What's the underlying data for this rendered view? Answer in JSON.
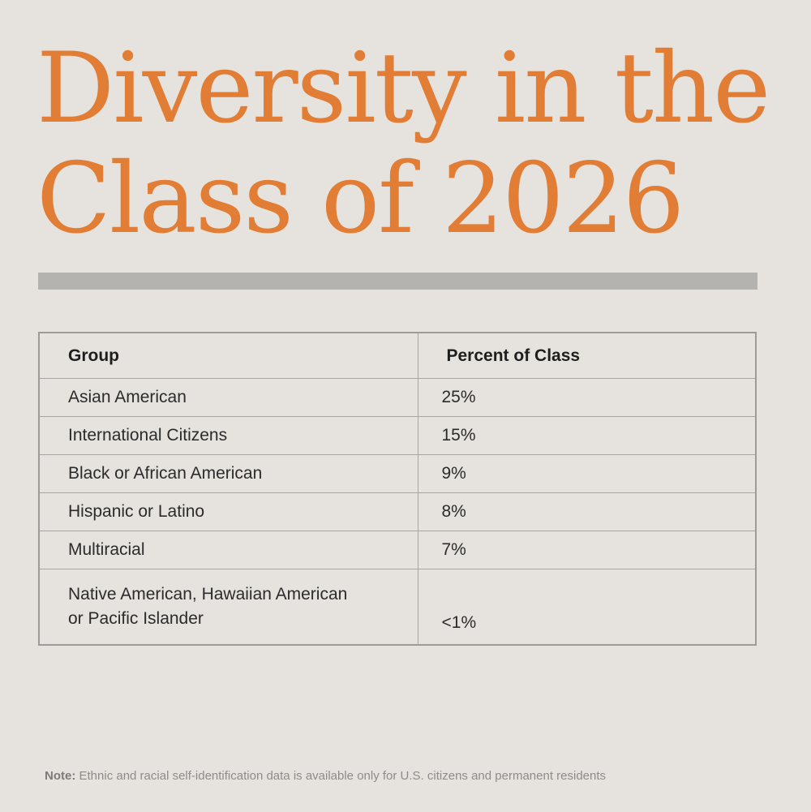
{
  "title_line1": "Diversity in the",
  "title_line2": "Class of 2026",
  "colors": {
    "title": "#e27d35",
    "rule": "#b5b3b0",
    "background": "#e6e3df",
    "table_border": "#a8a6a3"
  },
  "chart_data": {
    "type": "table",
    "title": "Diversity in the Class of 2026",
    "columns": [
      "Group",
      "Percent of Class"
    ],
    "rows": [
      {
        "group": "Asian American",
        "percent": "25%"
      },
      {
        "group": "International Citizens",
        "percent": "15%"
      },
      {
        "group": "Black or African American",
        "percent": "9%"
      },
      {
        "group": "Hispanic or Latino",
        "percent": "8%"
      },
      {
        "group": "Multiracial",
        "percent": "7%"
      },
      {
        "group_line1": "Native American, Hawaiian American",
        "group_line2": "or Pacific Islander",
        "percent": "<1%"
      }
    ]
  },
  "note": {
    "label": "Note:",
    "text": "Ethnic and racial self-identification data is available only for U.S. citizens and permanent residents"
  }
}
